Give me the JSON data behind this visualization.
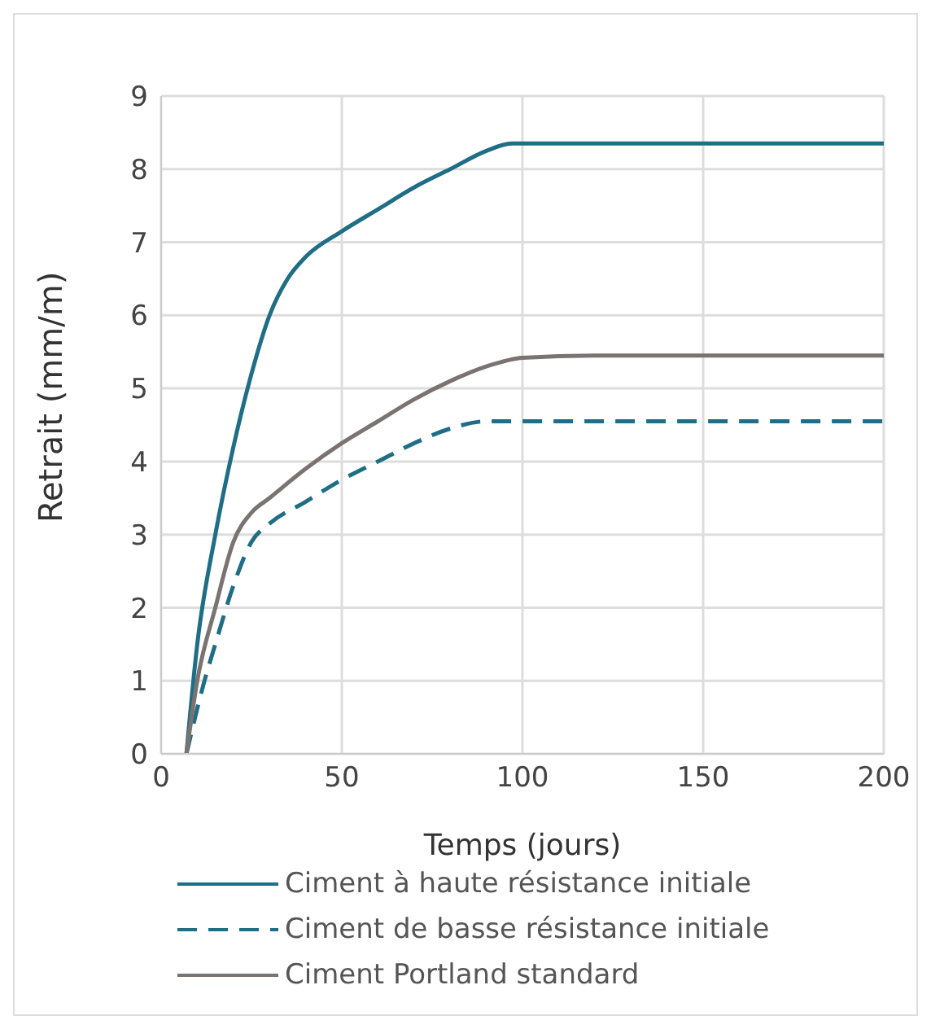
{
  "chart_data": {
    "type": "line",
    "xlabel": "Temps (jours)",
    "ylabel": "Retrait (mm/m)",
    "xlim": [
      0,
      200
    ],
    "xticks": [
      0,
      50,
      100,
      150,
      200
    ],
    "ylim": [
      0,
      9
    ],
    "yticks": [
      0,
      1,
      2,
      3,
      4,
      5,
      6,
      7,
      8,
      9
    ],
    "grid": true,
    "legend": "bottom",
    "marker": "none",
    "series": [
      {
        "name": "Ciment à haute résistance initiale",
        "color": "#1f6e86",
        "line_style": "solid",
        "x": [
          7,
          10,
          15,
          20,
          25,
          30,
          35,
          40,
          50,
          60,
          70,
          80,
          90,
          97,
          100,
          200
        ],
        "values": [
          0,
          1.5,
          3,
          4.2,
          5.2,
          6.0,
          6.5,
          6.8,
          7.15,
          7.45,
          7.75,
          8.0,
          8.25,
          8.35,
          8.35,
          8.35
        ]
      },
      {
        "name": "Ciment de basse résistance initiale",
        "color": "#1f6e86",
        "line_style": "dashed",
        "x": [
          7,
          12,
          15,
          20,
          25,
          30,
          40,
          50,
          60,
          70,
          80,
          90,
          100,
          200
        ],
        "values": [
          0,
          1,
          1.5,
          2.3,
          2.9,
          3.15,
          3.45,
          3.75,
          4.0,
          4.25,
          4.45,
          4.55,
          4.55,
          4.55
        ]
      },
      {
        "name": "Ciment Portland standard",
        "color": "#7a7370",
        "line_style": "solid",
        "x": [
          7,
          10,
          15,
          20,
          25,
          30,
          40,
          50,
          60,
          70,
          80,
          90,
          100,
          120,
          200
        ],
        "values": [
          0,
          1,
          2,
          2.9,
          3.3,
          3.5,
          3.9,
          4.25,
          4.55,
          4.85,
          5.1,
          5.3,
          5.42,
          5.45,
          5.45
        ]
      }
    ]
  }
}
